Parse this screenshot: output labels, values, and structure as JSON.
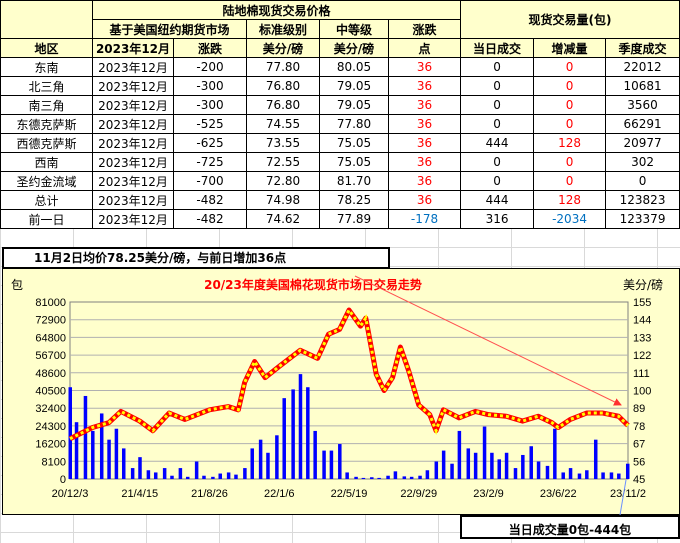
{
  "table": {
    "header_price_group": "陆地棉现货交易价格",
    "header_volume_group": "现货交易量(包)",
    "header_basis": "基于美国纽约期货市场",
    "header_std": "标准级别",
    "header_mid": "中等级",
    "header_change": "涨跌",
    "col_region": "地区",
    "col_month": "2023年12月",
    "col_basis_change": "涨跌",
    "col_std_unit": "美分/磅",
    "col_mid_unit": "美分/磅",
    "col_points": "点",
    "col_today": "当日成交",
    "col_delta": "增减量",
    "col_season": "季度成交",
    "rows": [
      {
        "region": "东南",
        "month": "2023年12月",
        "basis": "-200",
        "std": "77.80",
        "mid": "80.05",
        "chg": "36",
        "today": "0",
        "delta": "0",
        "season": "22012"
      },
      {
        "region": "北三角",
        "month": "2023年12月",
        "basis": "-300",
        "std": "76.80",
        "mid": "79.05",
        "chg": "36",
        "today": "0",
        "delta": "0",
        "season": "10681"
      },
      {
        "region": "南三角",
        "month": "2023年12月",
        "basis": "-300",
        "std": "76.80",
        "mid": "79.05",
        "chg": "36",
        "today": "0",
        "delta": "0",
        "season": "3560"
      },
      {
        "region": "东德克萨斯",
        "month": "2023年12月",
        "basis": "-525",
        "std": "74.55",
        "mid": "77.80",
        "chg": "36",
        "today": "0",
        "delta": "0",
        "season": "66291"
      },
      {
        "region": "西德克萨斯",
        "month": "2023年12月",
        "basis": "-625",
        "std": "73.55",
        "mid": "75.05",
        "chg": "36",
        "today": "444",
        "delta": "128",
        "season": "20977"
      },
      {
        "region": "西南",
        "month": "2023年12月",
        "basis": "-725",
        "std": "72.55",
        "mid": "75.05",
        "chg": "36",
        "today": "0",
        "delta": "0",
        "season": "302"
      },
      {
        "region": "圣约金流域",
        "month": "2023年12月",
        "basis": "-700",
        "std": "72.80",
        "mid": "81.70",
        "chg": "36",
        "today": "0",
        "delta": "0",
        "season": "0"
      },
      {
        "region": "总计",
        "month": "2023年12月",
        "basis": "-482",
        "std": "74.98",
        "mid": "78.25",
        "chg": "36",
        "today": "444",
        "delta": "128",
        "season": "123823"
      },
      {
        "region": "前一日",
        "month": "2023年12月",
        "basis": "-482",
        "std": "74.62",
        "mid": "77.89",
        "chg": "-178",
        "today": "316",
        "delta": "-2034",
        "season": "123379"
      }
    ],
    "colors": {
      "positive": "#ff0000",
      "negative": "#0070c0",
      "header_bg": "#ffffcc"
    }
  },
  "annotations": {
    "price_note": "11月2日均价78.25美分/磅，与前日增加36点",
    "volume_note": "当日成交量0包-444包"
  },
  "chart_data": {
    "type": "bar+line",
    "title": "20/23年度美国棉花现货市场日交易走势",
    "ylabel_left": "包",
    "ylabel_right": "美分/磅",
    "ylim_left": [
      0,
      81000
    ],
    "ylim_right": [
      45,
      155
    ],
    "yticks_left": [
      "0",
      "8100",
      "16200",
      "24300",
      "32400",
      "40500",
      "48600",
      "56700",
      "64800",
      "72900",
      "81000"
    ],
    "yticks_right": [
      "45",
      "56",
      "67",
      "78",
      "89",
      "100",
      "111",
      "122",
      "133",
      "144",
      "155"
    ],
    "xlim": [
      "2020-12-03",
      "2023-11-02"
    ],
    "xticks": [
      {
        "date": "2020-12-03",
        "label": "20/12/3"
      },
      {
        "date": "2021-04-15",
        "label": "21/4/15"
      },
      {
        "date": "2021-08-26",
        "label": "21/8/26"
      },
      {
        "date": "2022-01-06",
        "label": "22/1/6"
      },
      {
        "date": "2022-05-19",
        "label": "22/5/19"
      },
      {
        "date": "2022-09-29",
        "label": "22/9/29"
      },
      {
        "date": "2023-02-09",
        "label": "23/2/9"
      },
      {
        "date": "2023-06-22",
        "label": "23/6/22"
      },
      {
        "date": "2023-11-02",
        "label": "23/11/2"
      }
    ],
    "grid": true,
    "colors": {
      "volume": "#0000ff",
      "price": "#ff0000",
      "price_marker": "#ffff00",
      "title": "#ff0000",
      "background": "#ffffcc"
    },
    "volume_series": [
      [
        "2020-12-03",
        42000
      ],
      [
        "2020-12-15",
        26000
      ],
      [
        "2021-01-01",
        38000
      ],
      [
        "2021-01-15",
        22000
      ],
      [
        "2021-02-01",
        30000
      ],
      [
        "2021-02-15",
        18000
      ],
      [
        "2021-03-01",
        23000
      ],
      [
        "2021-03-15",
        14000
      ],
      [
        "2021-04-01",
        5000
      ],
      [
        "2021-04-15",
        10000
      ],
      [
        "2021-05-01",
        4000
      ],
      [
        "2021-05-15",
        3000
      ],
      [
        "2021-06-01",
        5000
      ],
      [
        "2021-06-15",
        1500
      ],
      [
        "2021-07-01",
        5000
      ],
      [
        "2021-07-15",
        1000
      ],
      [
        "2021-08-01",
        8000
      ],
      [
        "2021-08-15",
        1500
      ],
      [
        "2021-09-01",
        1000
      ],
      [
        "2021-09-15",
        2500
      ],
      [
        "2021-10-01",
        3000
      ],
      [
        "2021-10-15",
        2000
      ],
      [
        "2021-11-01",
        5000
      ],
      [
        "2021-11-15",
        14000
      ],
      [
        "2021-12-01",
        18000
      ],
      [
        "2021-12-15",
        12000
      ],
      [
        "2022-01-01",
        20000
      ],
      [
        "2022-01-15",
        37000
      ],
      [
        "2022-02-01",
        41000
      ],
      [
        "2022-02-15",
        48000
      ],
      [
        "2022-03-01",
        42000
      ],
      [
        "2022-03-15",
        22000
      ],
      [
        "2022-04-01",
        13000
      ],
      [
        "2022-04-15",
        13000
      ],
      [
        "2022-05-01",
        16000
      ],
      [
        "2022-05-15",
        3000
      ],
      [
        "2022-06-01",
        1000
      ],
      [
        "2022-06-15",
        500
      ],
      [
        "2022-07-01",
        800
      ],
      [
        "2022-07-15",
        500
      ],
      [
        "2022-08-01",
        1500
      ],
      [
        "2022-08-15",
        3500
      ],
      [
        "2022-09-01",
        1200
      ],
      [
        "2022-09-15",
        1000
      ],
      [
        "2022-10-01",
        1500
      ],
      [
        "2022-10-15",
        4000
      ],
      [
        "2022-11-01",
        8000
      ],
      [
        "2022-11-15",
        13000
      ],
      [
        "2022-12-01",
        7000
      ],
      [
        "2022-12-15",
        22000
      ],
      [
        "2023-01-01",
        14000
      ],
      [
        "2023-01-15",
        12000
      ],
      [
        "2023-02-01",
        24000
      ],
      [
        "2023-02-15",
        12000
      ],
      [
        "2023-03-01",
        9000
      ],
      [
        "2023-03-15",
        12000
      ],
      [
        "2023-04-01",
        5000
      ],
      [
        "2023-04-15",
        11000
      ],
      [
        "2023-05-01",
        15000
      ],
      [
        "2023-05-15",
        8000
      ],
      [
        "2023-06-01",
        6000
      ],
      [
        "2023-06-15",
        23000
      ],
      [
        "2023-07-01",
        3000
      ],
      [
        "2023-07-15",
        5000
      ],
      [
        "2023-08-01",
        2500
      ],
      [
        "2023-08-15",
        4000
      ],
      [
        "2023-09-01",
        18000
      ],
      [
        "2023-09-15",
        3000
      ],
      [
        "2023-10-01",
        3000
      ],
      [
        "2023-10-15",
        2500
      ],
      [
        "2023-11-01",
        7000
      ]
    ],
    "price_series": [
      [
        "2020-12-03",
        70
      ],
      [
        "2021-01-15",
        77
      ],
      [
        "2021-02-15",
        80
      ],
      [
        "2021-03-10",
        87
      ],
      [
        "2021-04-15",
        81
      ],
      [
        "2021-05-10",
        75
      ],
      [
        "2021-06-10",
        86
      ],
      [
        "2021-07-10",
        82
      ],
      [
        "2021-08-26",
        88
      ],
      [
        "2021-10-01",
        90
      ],
      [
        "2021-10-20",
        88
      ],
      [
        "2021-11-01",
        105
      ],
      [
        "2021-11-20",
        118
      ],
      [
        "2021-12-10",
        108
      ],
      [
        "2022-01-06",
        115
      ],
      [
        "2022-02-15",
        125
      ],
      [
        "2022-03-20",
        120
      ],
      [
        "2022-04-10",
        135
      ],
      [
        "2022-05-01",
        138
      ],
      [
        "2022-05-19",
        150
      ],
      [
        "2022-06-10",
        140
      ],
      [
        "2022-06-20",
        145
      ],
      [
        "2022-07-10",
        110
      ],
      [
        "2022-07-25",
        100
      ],
      [
        "2022-08-10",
        108
      ],
      [
        "2022-08-25",
        127
      ],
      [
        "2022-09-10",
        112
      ],
      [
        "2022-09-29",
        91
      ],
      [
        "2022-10-20",
        85
      ],
      [
        "2022-11-01",
        75
      ],
      [
        "2022-11-15",
        88
      ],
      [
        "2022-12-15",
        83
      ],
      [
        "2023-01-15",
        87
      ],
      [
        "2023-02-09",
        85
      ],
      [
        "2023-03-15",
        84
      ],
      [
        "2023-04-15",
        81
      ],
      [
        "2023-05-15",
        84
      ],
      [
        "2023-06-10",
        80
      ],
      [
        "2023-06-22",
        77
      ],
      [
        "2023-07-15",
        82
      ],
      [
        "2023-08-15",
        86
      ],
      [
        "2023-09-15",
        86
      ],
      [
        "2023-10-15",
        84
      ],
      [
        "2023-11-02",
        78.25
      ]
    ]
  }
}
